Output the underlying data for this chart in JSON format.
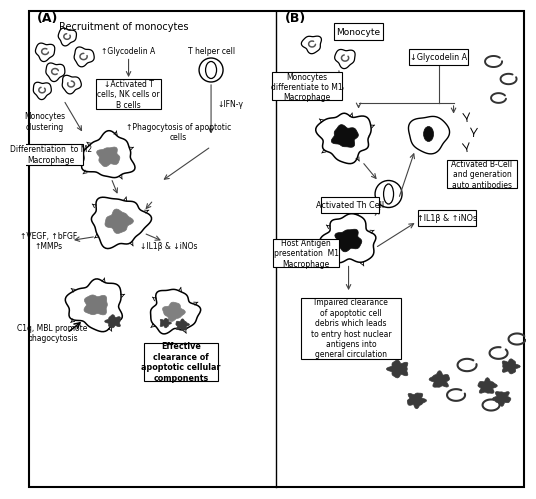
{
  "panel_A_label": "(A)",
  "panel_B_label": "(B)",
  "bg_color": "#ffffff",
  "font_size_panel": 9,
  "font_size_title": 7,
  "font_size_label": 6,
  "font_size_small": 5.5,
  "text_A": {
    "title": "Recruitment of monocytes",
    "monocytes_clustering": "Monocytes\nclustering",
    "glycodelin": "↑Glycodelin A",
    "activated_box": "↓Activated T\ncells, NK cells or\nB cells",
    "t_helper": "T helper cell",
    "ifn": "↓IFN-γ",
    "diff_m2": "Differentiation  to M2\nMacrophage",
    "phago": "↑Phagocytosis of apoptotic\ncells",
    "il1b": "↓IL1β & ↓iNOs",
    "vegf": "↑VEGF, ↑bFGF\n↑MMPs",
    "c1q": "C1q, MBL promote\nphagocytosis",
    "effective": "Effective\nclearance of\napoptotic cellular\ncomponents"
  },
  "text_B": {
    "monocyte_box": "Monocyte",
    "diff_m1": "Monocytes\ndifferentiate to M1\nMacrophage",
    "glycodelin": "↓Glycodelin A",
    "activated_th": "Activated Th Cell",
    "host_antigen": "Host Antigen\npresentation  M1\nMacrophage",
    "activated_b": "Activated B-Cell\nand generation\nauto antibodies",
    "il1b": "↑IL1β & ↑iNOs",
    "impaired": "Impaired clearance\nof apoptotic cell\ndebris which leads\nto entry host nuclear\nantigens into\ngeneral circulation"
  }
}
